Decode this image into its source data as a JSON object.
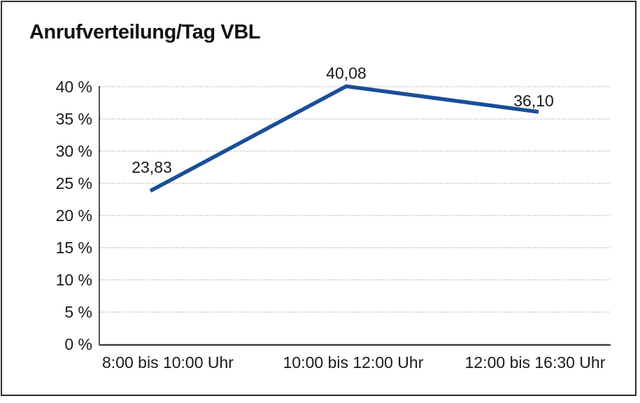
{
  "window": {
    "background": "#ffffff",
    "frame_border_color": "#2d2d2d"
  },
  "chart_data": {
    "type": "line",
    "title": "Anrufverteilung/Tag VBL",
    "categories": [
      "8:00 bis 10:00 Uhr",
      "10:00 bis 12:00 Uhr",
      "12:00 bis 16:30 Uhr"
    ],
    "values": [
      23.83,
      40.08,
      36.1
    ],
    "value_labels": [
      "23,83",
      "40,08",
      "36,10"
    ],
    "xlabel": "",
    "ylabel": "",
    "ylim": [
      0,
      40
    ],
    "ytick_step": 5,
    "yticks": [
      {
        "value": 0,
        "label": "0 %"
      },
      {
        "value": 5,
        "label": "5 %"
      },
      {
        "value": 10,
        "label": "10 %"
      },
      {
        "value": 15,
        "label": "15 %"
      },
      {
        "value": 20,
        "label": "20 %"
      },
      {
        "value": 25,
        "label": "25 %"
      },
      {
        "value": 30,
        "label": "30 %"
      },
      {
        "value": 35,
        "label": "35 %"
      },
      {
        "value": 40,
        "label": "40 %"
      }
    ],
    "grid": "horizontal-dotted",
    "legend": "none",
    "line_color": "#1a4e97",
    "gridline_color": "#8a8a8a",
    "axis_color": "#1a1a1a",
    "x_axis_line_color": "#404040",
    "text_color": "#1a1a1a"
  }
}
